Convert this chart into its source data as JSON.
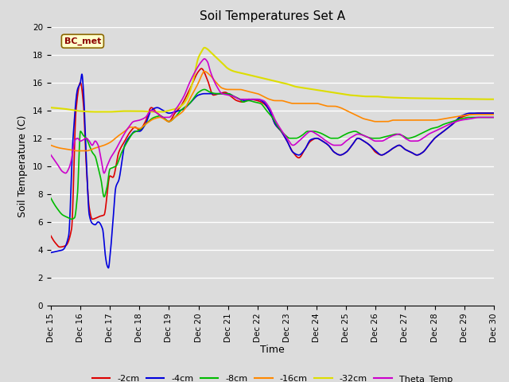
{
  "title": "Soil Temperatures Set A",
  "xlabel": "Time",
  "ylabel": "Soil Temperature (C)",
  "ylim": [
    0,
    20
  ],
  "xlim": [
    0,
    15
  ],
  "annotation": "BC_met",
  "background_color": "#dcdcdc",
  "plot_bg_color": "#dcdcdc",
  "grid_color": "white",
  "series": {
    "-2cm": {
      "color": "#dd0000",
      "lw": 1.2
    },
    "-4cm": {
      "color": "#0000dd",
      "lw": 1.2
    },
    "-8cm": {
      "color": "#00bb00",
      "lw": 1.2
    },
    "-16cm": {
      "color": "#ff8800",
      "lw": 1.2
    },
    "-32cm": {
      "color": "#dddd00",
      "lw": 1.5
    },
    "Theta_Temp": {
      "color": "#cc00cc",
      "lw": 1.2
    }
  },
  "xtick_labels": [
    "Dec 15",
    "Dec 16",
    "Dec 17",
    "Dec 18",
    "Dec 19",
    "Dec 20",
    "Dec 21",
    "Dec 22",
    "Dec 23",
    "Dec 24",
    "Dec 25",
    "Dec 26",
    "Dec 27",
    "Dec 28",
    "Dec 29",
    "Dec 30"
  ],
  "xtick_positions": [
    0,
    1,
    2,
    3,
    4,
    5,
    6,
    7,
    8,
    9,
    10,
    11,
    12,
    13,
    14,
    15
  ]
}
